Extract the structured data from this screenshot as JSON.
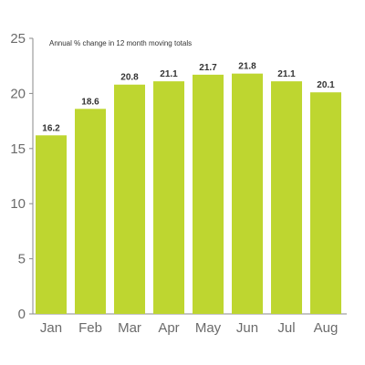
{
  "chart_data": {
    "type": "bar",
    "annotation": "Annual % change in 12 month moving totals",
    "categories": [
      "Jan",
      "Feb",
      "Mar",
      "Apr",
      "May",
      "Jun",
      "Jul",
      "Aug"
    ],
    "values": [
      16.2,
      18.6,
      20.8,
      21.1,
      21.7,
      21.8,
      21.1,
      20.1
    ],
    "data_labels": [
      "16.2",
      "18.6",
      "20.8",
      "21.1",
      "21.7",
      "21.8",
      "21.1",
      "20.1"
    ],
    "y_ticks": [
      0,
      5,
      10,
      15,
      20,
      25
    ],
    "y_tick_labels": [
      "0",
      "5",
      "10",
      "15",
      "20",
      "25"
    ],
    "ylim": [
      0,
      25
    ],
    "grid": false,
    "legend": "none",
    "colors": {
      "bar": "#bed630",
      "axis": "#8a8a8a",
      "text": "#6b6b6b"
    }
  }
}
